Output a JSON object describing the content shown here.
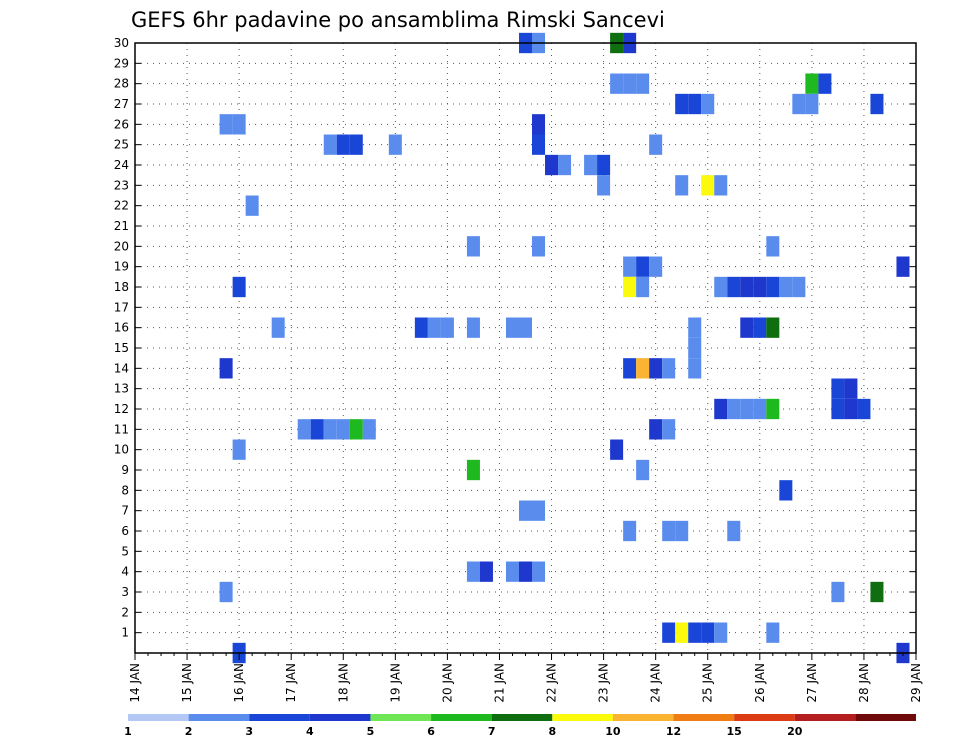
{
  "chart_data": {
    "type": "heatmap",
    "title": "GEFS 6hr padavine po ansamblima Rimski Sancevi",
    "xlabel": "",
    "ylabel": "",
    "x_ticks": [
      {
        "label": "14 JAN",
        "day": 14
      },
      {
        "label": "15 JAN",
        "day": 15
      },
      {
        "label": "16 JAN",
        "day": 16
      },
      {
        "label": "17 JAN",
        "day": 17
      },
      {
        "label": "18 JAN",
        "day": 18
      },
      {
        "label": "19 JAN",
        "day": 19
      },
      {
        "label": "20 JAN",
        "day": 20
      },
      {
        "label": "21 JAN",
        "day": 21
      },
      {
        "label": "22 JAN",
        "day": 22
      },
      {
        "label": "23 JAN",
        "day": 23
      },
      {
        "label": "24 JAN",
        "day": 24
      },
      {
        "label": "25 JAN",
        "day": 25
      },
      {
        "label": "26 JAN",
        "day": 26
      },
      {
        "label": "27 JAN",
        "day": 27
      },
      {
        "label": "28 JAN",
        "day": 28
      },
      {
        "label": "29 JAN",
        "day": 29
      }
    ],
    "xlim": [
      14,
      29
    ],
    "y_ticks": [
      1,
      2,
      3,
      4,
      5,
      6,
      7,
      8,
      9,
      10,
      11,
      12,
      13,
      14,
      15,
      16,
      17,
      18,
      19,
      20,
      21,
      22,
      23,
      24,
      25,
      26,
      27,
      28,
      29,
      30
    ],
    "ylim": [
      0,
      30
    ],
    "step_hours": 6,
    "cells": [
      [
        30,
        21.5,
        2
      ],
      [
        30,
        21.75,
        1
      ],
      [
        30,
        23.25,
        6
      ],
      [
        30,
        23.5,
        3
      ],
      [
        28,
        23.25,
        1
      ],
      [
        28,
        23.5,
        1
      ],
      [
        28,
        23.75,
        1
      ],
      [
        28,
        27.0,
        5
      ],
      [
        28,
        27.25,
        2
      ],
      [
        27,
        24.5,
        2
      ],
      [
        27,
        24.75,
        2
      ],
      [
        27,
        25.0,
        1
      ],
      [
        27,
        26.75,
        1
      ],
      [
        27,
        27.0,
        1
      ],
      [
        27,
        28.25,
        2
      ],
      [
        26,
        15.75,
        1
      ],
      [
        26,
        16.0,
        1
      ],
      [
        26,
        21.75,
        3
      ],
      [
        25,
        17.75,
        1
      ],
      [
        25,
        18.0,
        2
      ],
      [
        25,
        18.25,
        2
      ],
      [
        25,
        19.0,
        1
      ],
      [
        25,
        21.75,
        2
      ],
      [
        25,
        24.0,
        1
      ],
      [
        24,
        22.0,
        3
      ],
      [
        24,
        22.25,
        1
      ],
      [
        24,
        22.75,
        1
      ],
      [
        24,
        23.0,
        2
      ],
      [
        23,
        23.0,
        1
      ],
      [
        23,
        24.5,
        1
      ],
      [
        23,
        25.0,
        7
      ],
      [
        23,
        25.25,
        1
      ],
      [
        22,
        16.25,
        1
      ],
      [
        20,
        20.5,
        1
      ],
      [
        20,
        21.75,
        1
      ],
      [
        20,
        26.25,
        1
      ],
      [
        19,
        23.5,
        1
      ],
      [
        19,
        23.75,
        2
      ],
      [
        19,
        24.0,
        1
      ],
      [
        19,
        28.75,
        3
      ],
      [
        18,
        16.0,
        2
      ],
      [
        18,
        23.5,
        7
      ],
      [
        18,
        23.75,
        1
      ],
      [
        18,
        25.25,
        1
      ],
      [
        18,
        25.5,
        2
      ],
      [
        18,
        25.75,
        3
      ],
      [
        18,
        26.0,
        3
      ],
      [
        18,
        26.25,
        2
      ],
      [
        18,
        26.5,
        1
      ],
      [
        18,
        26.75,
        1
      ],
      [
        16,
        16.75,
        1
      ],
      [
        16,
        19.5,
        2
      ],
      [
        16,
        19.75,
        1
      ],
      [
        16,
        20.0,
        1
      ],
      [
        16,
        20.5,
        1
      ],
      [
        16,
        21.25,
        1
      ],
      [
        16,
        21.5,
        1
      ],
      [
        16,
        24.75,
        1
      ],
      [
        16,
        25.75,
        3
      ],
      [
        16,
        26.0,
        2
      ],
      [
        16,
        26.25,
        6
      ],
      [
        15,
        24.75,
        1
      ],
      [
        14,
        15.75,
        3
      ],
      [
        14,
        23.5,
        2
      ],
      [
        14,
        23.75,
        8
      ],
      [
        14,
        24.0,
        3
      ],
      [
        14,
        24.25,
        1
      ],
      [
        14,
        24.75,
        1
      ],
      [
        13,
        27.5,
        2
      ],
      [
        13,
        27.75,
        3
      ],
      [
        12,
        25.25,
        3
      ],
      [
        12,
        25.5,
        1
      ],
      [
        12,
        25.75,
        1
      ],
      [
        12,
        26.0,
        1
      ],
      [
        12,
        26.25,
        5
      ],
      [
        12,
        27.5,
        2
      ],
      [
        12,
        27.75,
        3
      ],
      [
        12,
        28.0,
        2
      ],
      [
        11,
        17.25,
        1
      ],
      [
        11,
        17.5,
        2
      ],
      [
        11,
        17.75,
        1
      ],
      [
        11,
        18.0,
        1
      ],
      [
        11,
        18.25,
        5
      ],
      [
        11,
        18.5,
        1
      ],
      [
        11,
        24.0,
        3
      ],
      [
        11,
        24.25,
        1
      ],
      [
        10,
        16.0,
        1
      ],
      [
        10,
        23.25,
        3
      ],
      [
        9,
        20.5,
        5
      ],
      [
        9,
        23.75,
        1
      ],
      [
        8,
        26.5,
        2
      ],
      [
        7,
        21.5,
        1
      ],
      [
        7,
        21.75,
        1
      ],
      [
        6,
        23.5,
        1
      ],
      [
        6,
        24.25,
        1
      ],
      [
        6,
        24.5,
        1
      ],
      [
        6,
        25.5,
        1
      ],
      [
        4,
        20.5,
        1
      ],
      [
        4,
        20.75,
        3
      ],
      [
        4,
        21.25,
        1
      ],
      [
        4,
        21.5,
        3
      ],
      [
        4,
        21.75,
        1
      ],
      [
        3,
        15.75,
        1
      ],
      [
        3,
        27.5,
        1
      ],
      [
        3,
        28.25,
        6
      ],
      [
        1,
        24.25,
        2
      ],
      [
        1,
        24.5,
        7
      ],
      [
        1,
        24.75,
        2
      ],
      [
        1,
        25.0,
        2
      ],
      [
        1,
        25.25,
        1
      ],
      [
        1,
        26.25,
        1
      ],
      [
        0,
        16.0,
        2
      ],
      [
        0,
        28.75,
        3
      ]
    ],
    "colorbar": {
      "labels": [
        "1",
        "2",
        "3",
        "4",
        "5",
        "6",
        "7",
        "8",
        "10",
        "12",
        "15",
        "20"
      ],
      "colors": [
        "#b4c8f5",
        "#5a8cee",
        "#1946d7",
        "#1e37cd",
        "#6ee655",
        "#1eb91e",
        "#0f6e0f",
        "#fafa0a",
        "#fab432",
        "#f07d14",
        "#dc3c14",
        "#b41e1e",
        "#6e0a0a"
      ]
    }
  }
}
